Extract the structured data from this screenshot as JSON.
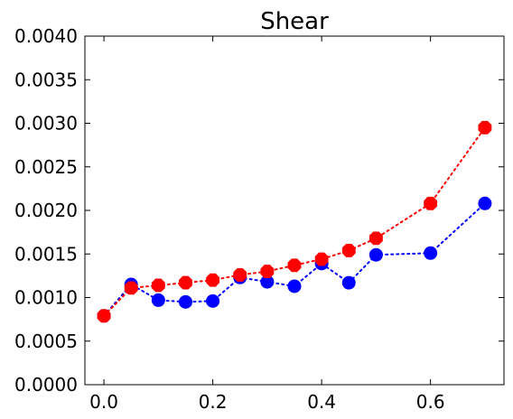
{
  "chart_data": {
    "type": "line",
    "title": "Shear",
    "xlabel": "",
    "ylabel": "",
    "xlim": [
      -0.035,
      0.735
    ],
    "ylim": [
      0.0,
      0.004
    ],
    "xticks": [
      0.0,
      0.2,
      0.4,
      0.6
    ],
    "xtick_labels": [
      "0.0",
      "0.2",
      "0.4",
      "0.6"
    ],
    "yticks": [
      0.0,
      0.0005,
      0.001,
      0.0015,
      0.002,
      0.0025,
      0.003,
      0.0035,
      0.004
    ],
    "ytick_labels": [
      "0.0000",
      "0.0005",
      "0.0010",
      "0.0015",
      "0.0020",
      "0.0025",
      "0.0030",
      "0.0035",
      "0.0040"
    ],
    "grid": false,
    "legend": "none",
    "series": [
      {
        "color": "#0000ff",
        "marker": "circle",
        "linestyle": "dotted",
        "x": [
          0.0,
          0.05,
          0.1,
          0.15,
          0.2,
          0.25,
          0.3,
          0.35,
          0.4,
          0.45,
          0.5,
          0.6,
          0.7
        ],
        "y": [
          0.00079,
          0.00115,
          0.00097,
          0.00095,
          0.00096,
          0.00123,
          0.00118,
          0.00113,
          0.00139,
          0.00117,
          0.00149,
          0.00151,
          0.00208
        ]
      },
      {
        "color": "#ff0000",
        "marker": "octagon",
        "linestyle": "dotted",
        "x": [
          0.0,
          0.05,
          0.1,
          0.15,
          0.2,
          0.25,
          0.3,
          0.35,
          0.4,
          0.45,
          0.5,
          0.6,
          0.7
        ],
        "y": [
          0.00079,
          0.00111,
          0.00114,
          0.00117,
          0.0012,
          0.00126,
          0.0013,
          0.00137,
          0.00144,
          0.00154,
          0.00168,
          0.00208,
          0.00295
        ]
      }
    ]
  }
}
